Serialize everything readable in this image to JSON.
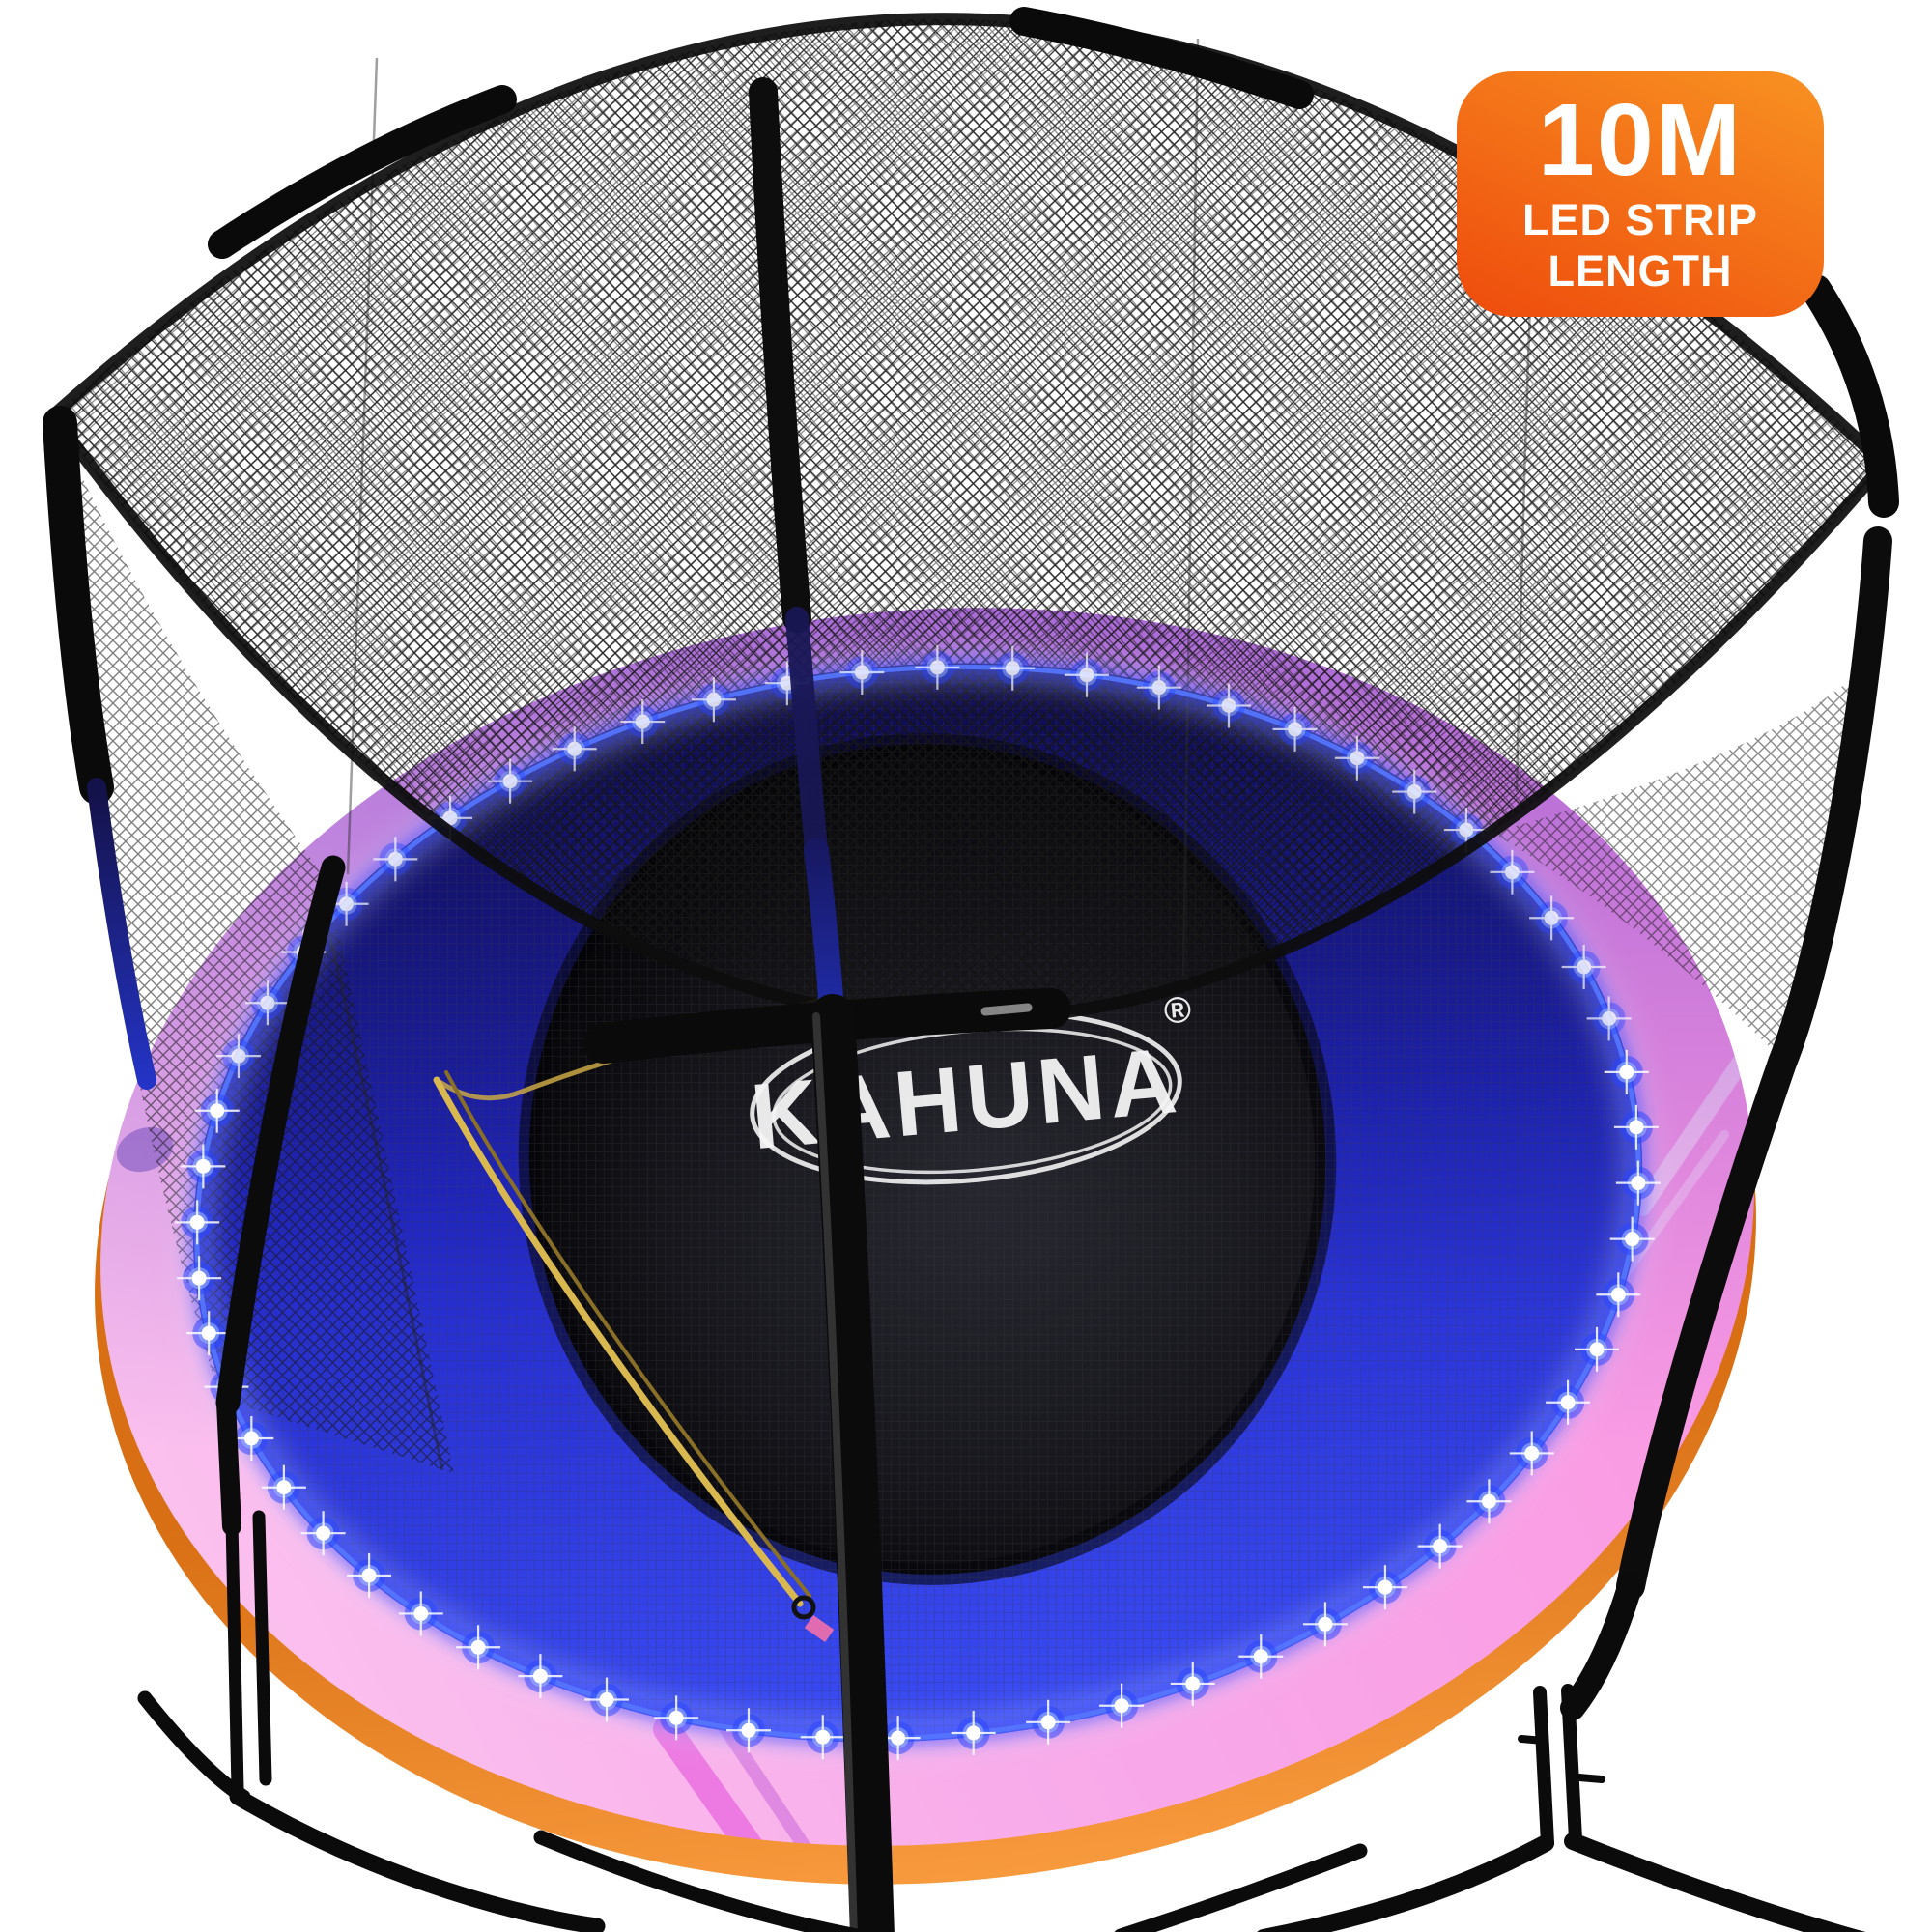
{
  "page": {
    "background": "#ffffff"
  },
  "badge": {
    "value": "10M",
    "label_line1": "LED STRIP",
    "label_line2": "LENGTH",
    "background_top": "#f89222",
    "background_bottom": "#ee4b0c",
    "text_color": "#ffffff"
  },
  "brand": {
    "name": "KAHUNA",
    "registered_mark": "®",
    "logo_color": "#f4f4f4"
  },
  "trampoline": {
    "led_count": 60,
    "led_color": "#ffffff",
    "led_glow_color": "#2743ff",
    "mat_ring_color": "#2730e0",
    "mat_color": "#0e0e12",
    "pad_color": "#f8a9e9",
    "rim_color": "#f28a1f",
    "net_color": "#161616",
    "frame_color": "#0c0c0c"
  }
}
